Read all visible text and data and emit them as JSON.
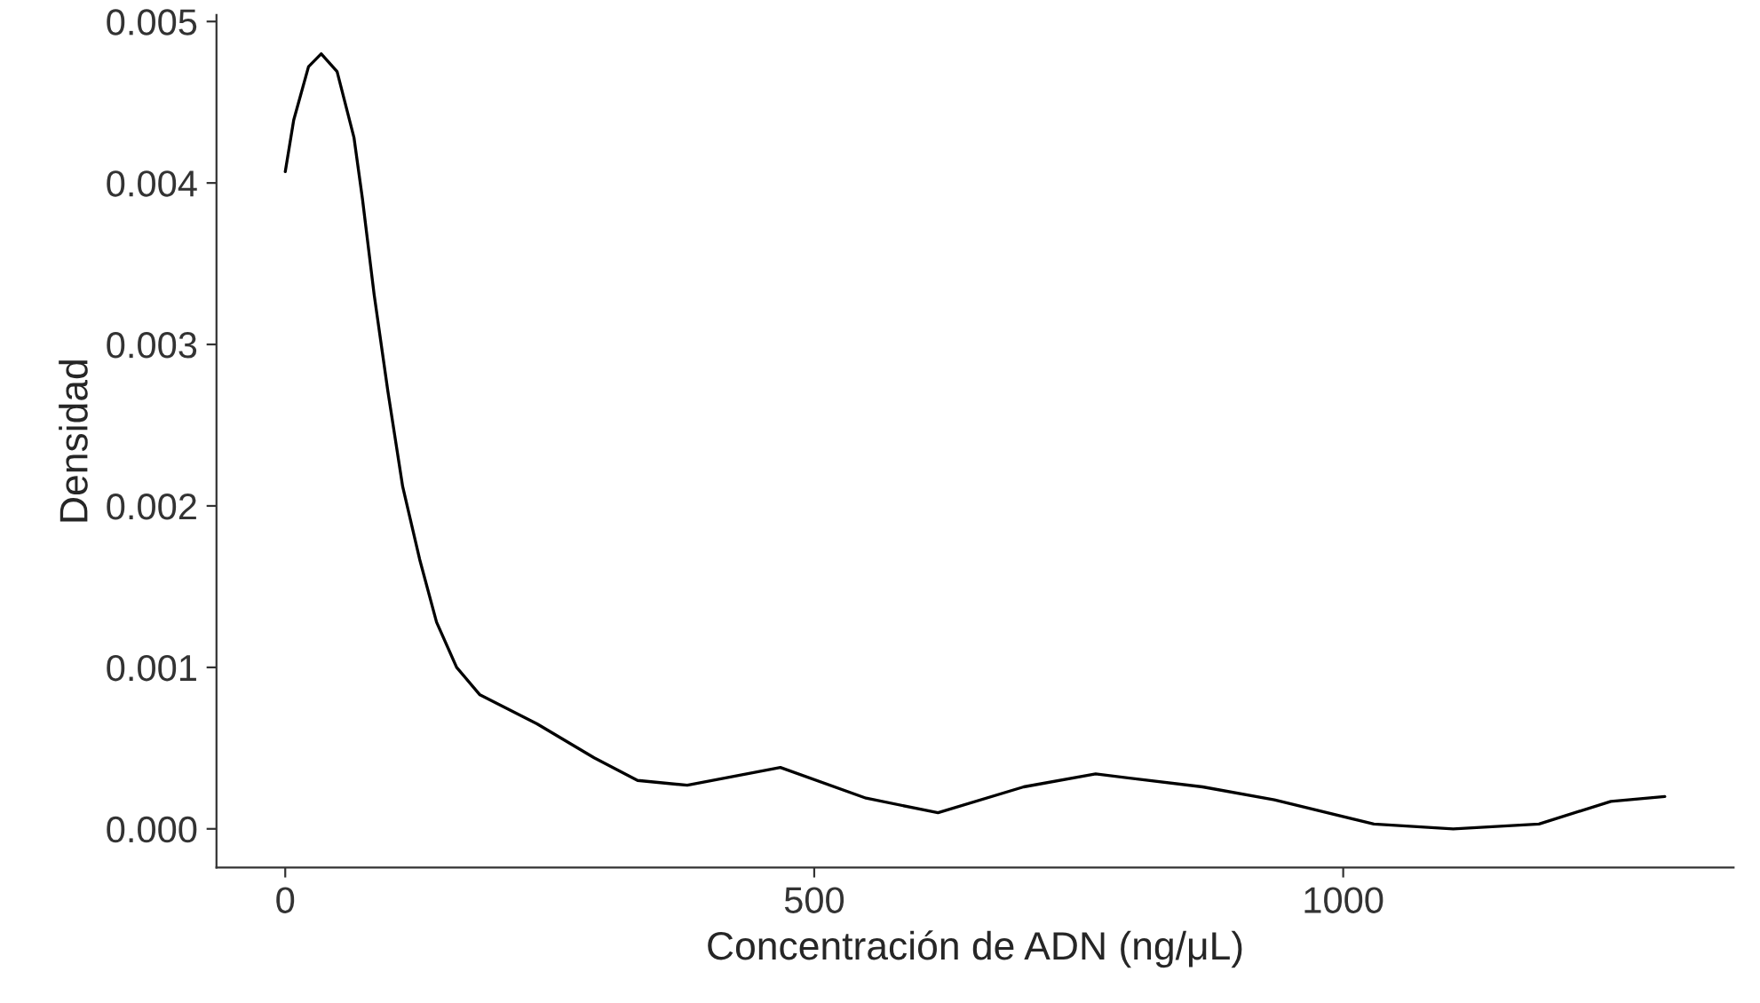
{
  "chart_data": {
    "type": "line",
    "xlabel": "Concentración de ADN (ng/μL)",
    "ylabel": "Densidad",
    "x": [
      0,
      8,
      22,
      34,
      49,
      65,
      73,
      84,
      97,
      111,
      127,
      143,
      162,
      184,
      238,
      292,
      333,
      380,
      468,
      549,
      617,
      698,
      766,
      867,
      935,
      1029,
      1104,
      1185,
      1253,
      1304
    ],
    "series": [
      {
        "color": "#000000",
        "values": [
          0.00407,
          0.00439,
          0.00472,
          0.0048,
          0.00469,
          0.00428,
          0.0039,
          0.00331,
          0.00271,
          0.00212,
          0.00167,
          0.00128,
          0.001,
          0.00083,
          0.00065,
          0.00044,
          0.0003,
          0.00027,
          0.00038,
          0.00019,
          0.0001,
          0.00026,
          0.00034,
          0.00026,
          0.00018,
          3e-05,
          0.0,
          3e-05,
          0.00017,
          0.0002
        ]
      }
    ],
    "xlim": [
      -65,
      1369
    ],
    "ylim": [
      -0.00024,
      0.00504
    ],
    "xticks": [
      0,
      500,
      1000
    ],
    "yticks": [
      {
        "value": 0,
        "label": "0.000"
      },
      {
        "value": 0.001,
        "label": "0.001"
      },
      {
        "value": 0.002,
        "label": "0.002"
      },
      {
        "value": 0.003,
        "label": "0.003"
      },
      {
        "value": 0.004,
        "label": "0.004"
      },
      {
        "value": 0.005,
        "label": "0.005"
      }
    ],
    "grid": false,
    "legend": false
  }
}
